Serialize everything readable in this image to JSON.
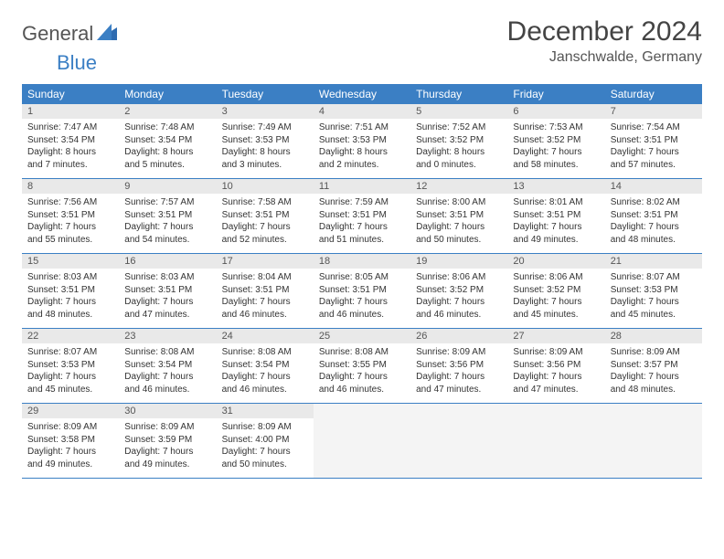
{
  "logo": {
    "text1": "General",
    "text2": "Blue"
  },
  "colors": {
    "header_bg": "#3b7fc4",
    "header_text": "#ffffff",
    "daynum_bg": "#e9e9e9",
    "row_border": "#3b7fc4",
    "logo_gray": "#555555",
    "logo_blue": "#3b7fc4"
  },
  "title": "December 2024",
  "location": "Janschwalde, Germany",
  "weekdays": [
    "Sunday",
    "Monday",
    "Tuesday",
    "Wednesday",
    "Thursday",
    "Friday",
    "Saturday"
  ],
  "days": [
    {
      "n": "1",
      "sunrise": "7:47 AM",
      "sunset": "3:54 PM",
      "dl1": "8 hours",
      "dl2": "and 7 minutes."
    },
    {
      "n": "2",
      "sunrise": "7:48 AM",
      "sunset": "3:54 PM",
      "dl1": "8 hours",
      "dl2": "and 5 minutes."
    },
    {
      "n": "3",
      "sunrise": "7:49 AM",
      "sunset": "3:53 PM",
      "dl1": "8 hours",
      "dl2": "and 3 minutes."
    },
    {
      "n": "4",
      "sunrise": "7:51 AM",
      "sunset": "3:53 PM",
      "dl1": "8 hours",
      "dl2": "and 2 minutes."
    },
    {
      "n": "5",
      "sunrise": "7:52 AM",
      "sunset": "3:52 PM",
      "dl1": "8 hours",
      "dl2": "and 0 minutes."
    },
    {
      "n": "6",
      "sunrise": "7:53 AM",
      "sunset": "3:52 PM",
      "dl1": "7 hours",
      "dl2": "and 58 minutes."
    },
    {
      "n": "7",
      "sunrise": "7:54 AM",
      "sunset": "3:51 PM",
      "dl1": "7 hours",
      "dl2": "and 57 minutes."
    },
    {
      "n": "8",
      "sunrise": "7:56 AM",
      "sunset": "3:51 PM",
      "dl1": "7 hours",
      "dl2": "and 55 minutes."
    },
    {
      "n": "9",
      "sunrise": "7:57 AM",
      "sunset": "3:51 PM",
      "dl1": "7 hours",
      "dl2": "and 54 minutes."
    },
    {
      "n": "10",
      "sunrise": "7:58 AM",
      "sunset": "3:51 PM",
      "dl1": "7 hours",
      "dl2": "and 52 minutes."
    },
    {
      "n": "11",
      "sunrise": "7:59 AM",
      "sunset": "3:51 PM",
      "dl1": "7 hours",
      "dl2": "and 51 minutes."
    },
    {
      "n": "12",
      "sunrise": "8:00 AM",
      "sunset": "3:51 PM",
      "dl1": "7 hours",
      "dl2": "and 50 minutes."
    },
    {
      "n": "13",
      "sunrise": "8:01 AM",
      "sunset": "3:51 PM",
      "dl1": "7 hours",
      "dl2": "and 49 minutes."
    },
    {
      "n": "14",
      "sunrise": "8:02 AM",
      "sunset": "3:51 PM",
      "dl1": "7 hours",
      "dl2": "and 48 minutes."
    },
    {
      "n": "15",
      "sunrise": "8:03 AM",
      "sunset": "3:51 PM",
      "dl1": "7 hours",
      "dl2": "and 48 minutes."
    },
    {
      "n": "16",
      "sunrise": "8:03 AM",
      "sunset": "3:51 PM",
      "dl1": "7 hours",
      "dl2": "and 47 minutes."
    },
    {
      "n": "17",
      "sunrise": "8:04 AM",
      "sunset": "3:51 PM",
      "dl1": "7 hours",
      "dl2": "and 46 minutes."
    },
    {
      "n": "18",
      "sunrise": "8:05 AM",
      "sunset": "3:51 PM",
      "dl1": "7 hours",
      "dl2": "and 46 minutes."
    },
    {
      "n": "19",
      "sunrise": "8:06 AM",
      "sunset": "3:52 PM",
      "dl1": "7 hours",
      "dl2": "and 46 minutes."
    },
    {
      "n": "20",
      "sunrise": "8:06 AM",
      "sunset": "3:52 PM",
      "dl1": "7 hours",
      "dl2": "and 45 minutes."
    },
    {
      "n": "21",
      "sunrise": "8:07 AM",
      "sunset": "3:53 PM",
      "dl1": "7 hours",
      "dl2": "and 45 minutes."
    },
    {
      "n": "22",
      "sunrise": "8:07 AM",
      "sunset": "3:53 PM",
      "dl1": "7 hours",
      "dl2": "and 45 minutes."
    },
    {
      "n": "23",
      "sunrise": "8:08 AM",
      "sunset": "3:54 PM",
      "dl1": "7 hours",
      "dl2": "and 46 minutes."
    },
    {
      "n": "24",
      "sunrise": "8:08 AM",
      "sunset": "3:54 PM",
      "dl1": "7 hours",
      "dl2": "and 46 minutes."
    },
    {
      "n": "25",
      "sunrise": "8:08 AM",
      "sunset": "3:55 PM",
      "dl1": "7 hours",
      "dl2": "and 46 minutes."
    },
    {
      "n": "26",
      "sunrise": "8:09 AM",
      "sunset": "3:56 PM",
      "dl1": "7 hours",
      "dl2": "and 47 minutes."
    },
    {
      "n": "27",
      "sunrise": "8:09 AM",
      "sunset": "3:56 PM",
      "dl1": "7 hours",
      "dl2": "and 47 minutes."
    },
    {
      "n": "28",
      "sunrise": "8:09 AM",
      "sunset": "3:57 PM",
      "dl1": "7 hours",
      "dl2": "and 48 minutes."
    },
    {
      "n": "29",
      "sunrise": "8:09 AM",
      "sunset": "3:58 PM",
      "dl1": "7 hours",
      "dl2": "and 49 minutes."
    },
    {
      "n": "30",
      "sunrise": "8:09 AM",
      "sunset": "3:59 PM",
      "dl1": "7 hours",
      "dl2": "and 49 minutes."
    },
    {
      "n": "31",
      "sunrise": "8:09 AM",
      "sunset": "4:00 PM",
      "dl1": "7 hours",
      "dl2": "and 50 minutes."
    }
  ],
  "labels": {
    "sunrise": "Sunrise: ",
    "sunset": "Sunset: ",
    "daylight": "Daylight: "
  },
  "trailing_empty": 4
}
